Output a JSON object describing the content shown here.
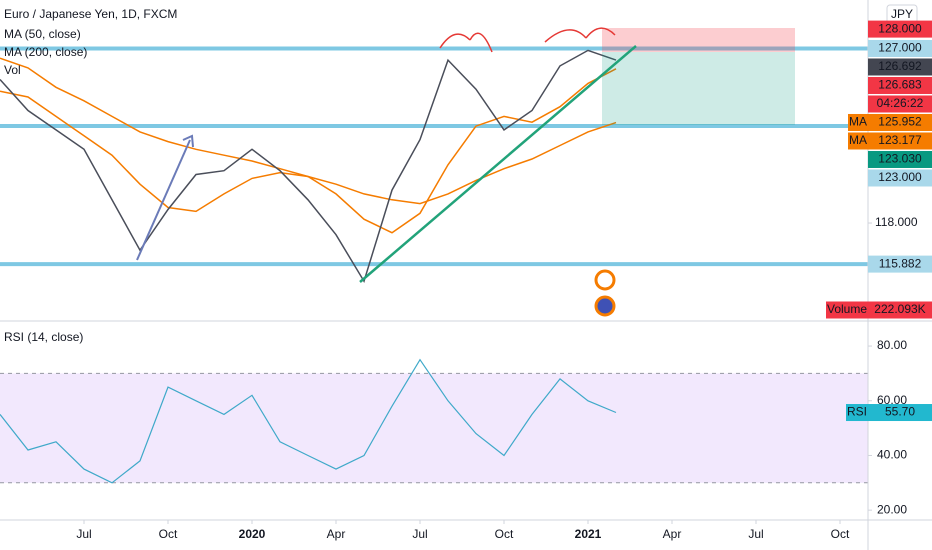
{
  "chart_data": {
    "type": "line",
    "title": "Euro / Japanese Yen, 1D, FXCM",
    "currency": "JPY",
    "x": [
      "2019-04",
      "2019-05",
      "2019-06",
      "2019-07",
      "2019-08",
      "2019-09",
      "2019-10",
      "2019-11",
      "2019-12",
      "2020-01",
      "2020-02",
      "2020-03",
      "2020-04",
      "2020-05",
      "2020-06",
      "2020-07",
      "2020-08",
      "2020-09",
      "2020-10",
      "2020-11",
      "2020-12",
      "2021-01",
      "2021-02"
    ],
    "values": [
      125.4,
      123.8,
      122.8,
      121.8,
      119.2,
      116.6,
      118.7,
      120.5,
      120.7,
      121.8,
      120.7,
      119.2,
      117.4,
      115.0,
      119.7,
      122.3,
      126.4,
      124.9,
      122.8,
      123.8,
      126.1,
      126.9,
      126.4
    ],
    "color": "#4a4e5a",
    "series": [
      {
        "name": "MA (50, close)",
        "color": "#f57c00",
        "values": [
          124.8,
          124.5,
          123.5,
          122.5,
          121.5,
          120.0,
          118.8,
          118.6,
          119.5,
          120.3,
          120.6,
          120.4,
          119.5,
          118.2,
          117.5,
          118.5,
          121.0,
          123.0,
          123.5,
          123.2,
          124.0,
          125.2,
          125.952
        ]
      },
      {
        "name": "MA (200, close)",
        "color": "#f57c00",
        "values": [
          126.5,
          126.0,
          125.0,
          124.3,
          123.5,
          122.7,
          122.2,
          121.8,
          121.5,
          121.2,
          120.8,
          120.4,
          120.0,
          119.5,
          119.2,
          119.0,
          119.5,
          120.2,
          120.8,
          121.3,
          122.0,
          122.7,
          123.177
        ]
      }
    ],
    "volume_label": "Vol",
    "xlim": [
      "2019-04",
      "2021-11"
    ],
    "xticks": [
      {
        "value": "2019-07",
        "label": "Jul"
      },
      {
        "value": "2019-10",
        "label": "Oct"
      },
      {
        "value": "2020-01",
        "label": "2020"
      },
      {
        "value": "2020-04",
        "label": "Apr"
      },
      {
        "value": "2020-07",
        "label": "Jul"
      },
      {
        "value": "2020-10",
        "label": "Oct"
      },
      {
        "value": "2021-01",
        "label": "2021"
      },
      {
        "value": "2021-04",
        "label": "Apr"
      },
      {
        "value": "2021-07",
        "label": "Jul"
      },
      {
        "value": "2021-10",
        "label": "Oct"
      }
    ],
    "ylim": [
      113,
      129.5
    ],
    "yticks": [
      {
        "value": 118,
        "label": "118.000"
      }
    ],
    "levels": [
      127,
      123,
      115.882
    ],
    "level_color": "#7ec8e3",
    "price_tags": [
      {
        "value": 128,
        "label": "128.000",
        "color": "#f23645",
        "text_color": "#ffffff"
      },
      {
        "value": 127,
        "label": "127.000",
        "color": "#a9d8ea",
        "text_color": "#131722"
      },
      {
        "value": 126.692,
        "label": "126.692",
        "color": "#434651",
        "text_color": "#ffffff"
      },
      {
        "value": 126.683,
        "label": "126.683",
        "color": "#f23645",
        "text_color": "#ffffff"
      },
      {
        "label": "04:26:22",
        "color": "#f23645",
        "text_color": "#ffffff"
      },
      {
        "name": "MA",
        "value": 125.952,
        "label": "125.952",
        "color": "#f57c00",
        "text_color": "#ffffff"
      },
      {
        "name": "MA",
        "value": 123.177,
        "label": "123.177",
        "color": "#f57c00",
        "text_color": "#ffffff"
      },
      {
        "value": 123.03,
        "label": "123.030",
        "color": "#089981",
        "text_color": "#ffffff"
      },
      {
        "value": 123,
        "label": "123.000",
        "color": "#a9d8ea",
        "text_color": "#131722"
      }
    ],
    "level_tag": {
      "value": 115.882,
      "label": "115.882",
      "color": "#a9d8ea",
      "text_color": "#131722"
    },
    "volume_tag": {
      "name": "Volume",
      "label": "222.093K",
      "color": "#f23645"
    },
    "rsi": {
      "title": "RSI (14, close)",
      "color": "#3fa9c9",
      "values": [
        55,
        42,
        45,
        35,
        30,
        38,
        65,
        60,
        55,
        62,
        45,
        40,
        35,
        40,
        58,
        75,
        60,
        48,
        40,
        55,
        68,
        60,
        55.7
      ],
      "ylim": [
        16.4,
        88.8
      ],
      "yticks": [
        {
          "value": 20,
          "label": "20.00"
        },
        {
          "value": 40,
          "label": "40.00"
        },
        {
          "value": 60,
          "label": "60.00"
        },
        {
          "value": 80,
          "label": "80.00"
        }
      ],
      "band": [
        30,
        70
      ],
      "band_color": "#e9d8fb",
      "last": {
        "name": "RSI",
        "value": 55.7,
        "label": "55.70",
        "color": "#22b8cf"
      }
    }
  }
}
